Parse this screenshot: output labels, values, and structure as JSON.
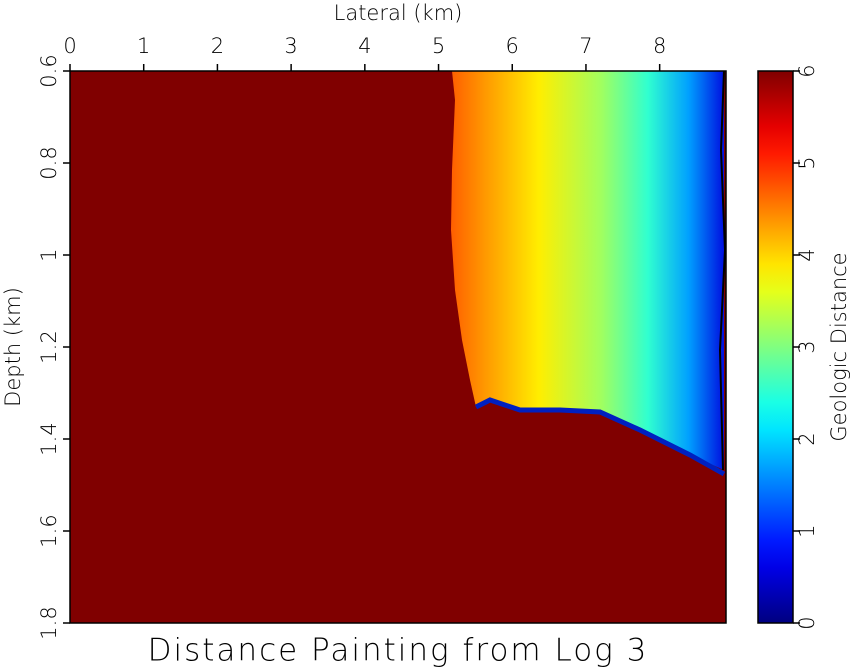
{
  "chart_data": {
    "type": "image",
    "title": "Distance Painting from Log 3",
    "xlabel": "Lateral (km)",
    "ylabel": "Depth (km)",
    "xlim": [
      0,
      8.9
    ],
    "xticks": [
      0,
      1,
      2,
      3,
      4,
      5,
      6,
      7,
      8
    ],
    "ylim": [
      1.8,
      0.6
    ],
    "yticks": [
      0.6,
      0.8,
      1,
      1.2,
      1.4,
      1.6,
      1.8
    ],
    "colormap": "jet",
    "colorbar": {
      "label": "Geologic Distance",
      "lim": [
        0,
        6
      ],
      "ticks": [
        0,
        1,
        2,
        3,
        4,
        5,
        6
      ]
    }
  }
}
